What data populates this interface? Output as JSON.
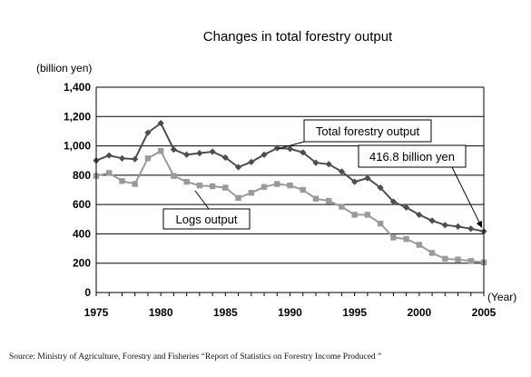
{
  "chart_data": {
    "type": "line",
    "title": "Changes in total forestry output",
    "ylabel": "(billion yen)",
    "xlabel": "(Year)",
    "ylim": [
      0,
      1400
    ],
    "yticks": [
      "0",
      "200",
      "400",
      "600",
      "800",
      "1,000",
      "1,200",
      "1,400"
    ],
    "xticks": [
      "1975",
      "1980",
      "1985",
      "1990",
      "1995",
      "2000",
      "2005"
    ],
    "grid": true,
    "x": [
      1975,
      1976,
      1977,
      1978,
      1979,
      1980,
      1981,
      1982,
      1983,
      1984,
      1985,
      1986,
      1987,
      1988,
      1989,
      1990,
      1991,
      1992,
      1993,
      1994,
      1995,
      1996,
      1997,
      1998,
      1999,
      2000,
      2001,
      2002,
      2003,
      2004,
      2005
    ],
    "series": [
      {
        "name": "Total forestry output",
        "color": "#4d4d4d",
        "marker": "diamond",
        "values": [
          900,
          935,
          915,
          910,
          1090,
          1155,
          975,
          940,
          950,
          960,
          920,
          855,
          890,
          940,
          985,
          980,
          955,
          885,
          875,
          825,
          755,
          780,
          715,
          620,
          580,
          530,
          490,
          460,
          450,
          435,
          417
        ]
      },
      {
        "name": "Logs output",
        "color": "#9a9a9a",
        "marker": "square",
        "values": [
          795,
          815,
          760,
          740,
          915,
          965,
          795,
          755,
          730,
          725,
          715,
          645,
          680,
          720,
          740,
          730,
          700,
          640,
          625,
          585,
          530,
          530,
          470,
          375,
          365,
          325,
          270,
          230,
          225,
          215,
          205
        ]
      }
    ],
    "annotations": [
      {
        "text": "Total forestry output"
      },
      {
        "text": "Logs output"
      },
      {
        "text": "416.8 billion yen"
      }
    ],
    "source": "Source:  Ministry of Agriculture, Forestry and Fisheries “Report of Statistics on Forestry Income Produced ”"
  }
}
